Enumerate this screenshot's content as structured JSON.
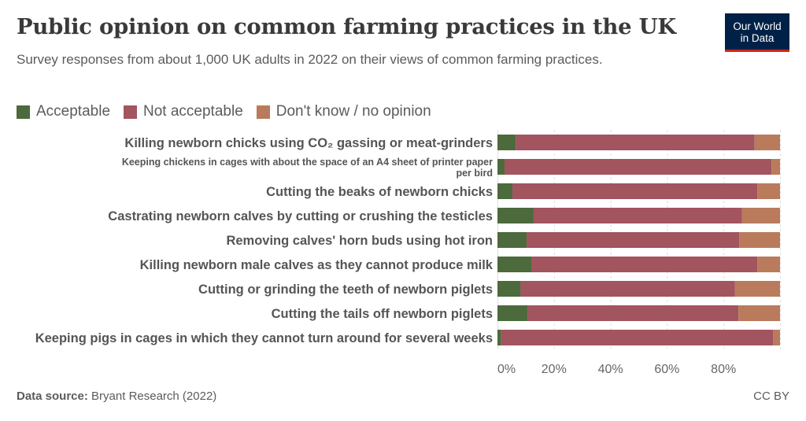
{
  "header": {
    "title": "Public opinion on common farming practices in the UK",
    "subtitle": "Survey responses from about 1,000 UK adults in 2022 on their views of common farming practices."
  },
  "logo": {
    "line1": "Our World",
    "line2": "in Data"
  },
  "legend": [
    {
      "label": "Acceptable",
      "color": "#4c6a3c"
    },
    {
      "label": "Not acceptable",
      "color": "#a2545f"
    },
    {
      "label": "Don't know / no opinion",
      "color": "#b97b5b"
    }
  ],
  "footer": {
    "source_label": "Data source:",
    "source_text": "Bryant Research (2022)",
    "license": "CC BY"
  },
  "chart_data": {
    "type": "bar",
    "orientation": "horizontal",
    "stacked": true,
    "categories": [
      "Killing newborn chicks using CO₂ gassing or meat-grinders",
      "Keeping chickens in cages with about the space of an A4 sheet of printer paper per bird",
      "Cutting the beaks of newborn chicks",
      "Castrating newborn calves by cutting or crushing the testicles",
      "Removing calves' horn buds using hot iron",
      "Killing newborn male calves as they cannot produce milk",
      "Cutting or grinding the teeth of newborn piglets",
      "Cutting the tails off newborn piglets",
      "Keeping pigs in cages in which they cannot turn around for several weeks"
    ],
    "series": [
      {
        "name": "Acceptable",
        "color": "#4c6a3c",
        "values": [
          6.5,
          2.5,
          5.3,
          12.8,
          10.3,
          12.1,
          8.2,
          10.8,
          1.3
        ]
      },
      {
        "name": "Not acceptable",
        "color": "#a2545f",
        "values": [
          84.5,
          94.5,
          86.7,
          73.7,
          75.3,
          79.9,
          75.8,
          74.5,
          96.2
        ]
      },
      {
        "name": "Don't know / no opinion",
        "color": "#b97b5b",
        "values": [
          9.0,
          3.0,
          8.0,
          13.5,
          14.4,
          8.0,
          16.0,
          14.7,
          2.5
        ]
      }
    ],
    "xlim": [
      0,
      100
    ],
    "x_ticks": [
      0,
      20,
      40,
      60,
      80
    ],
    "x_tick_labels": [
      "0%",
      "20%",
      "40%",
      "60%",
      "80%"
    ],
    "grid": "vertical dashed",
    "legend_position": "top-left"
  }
}
